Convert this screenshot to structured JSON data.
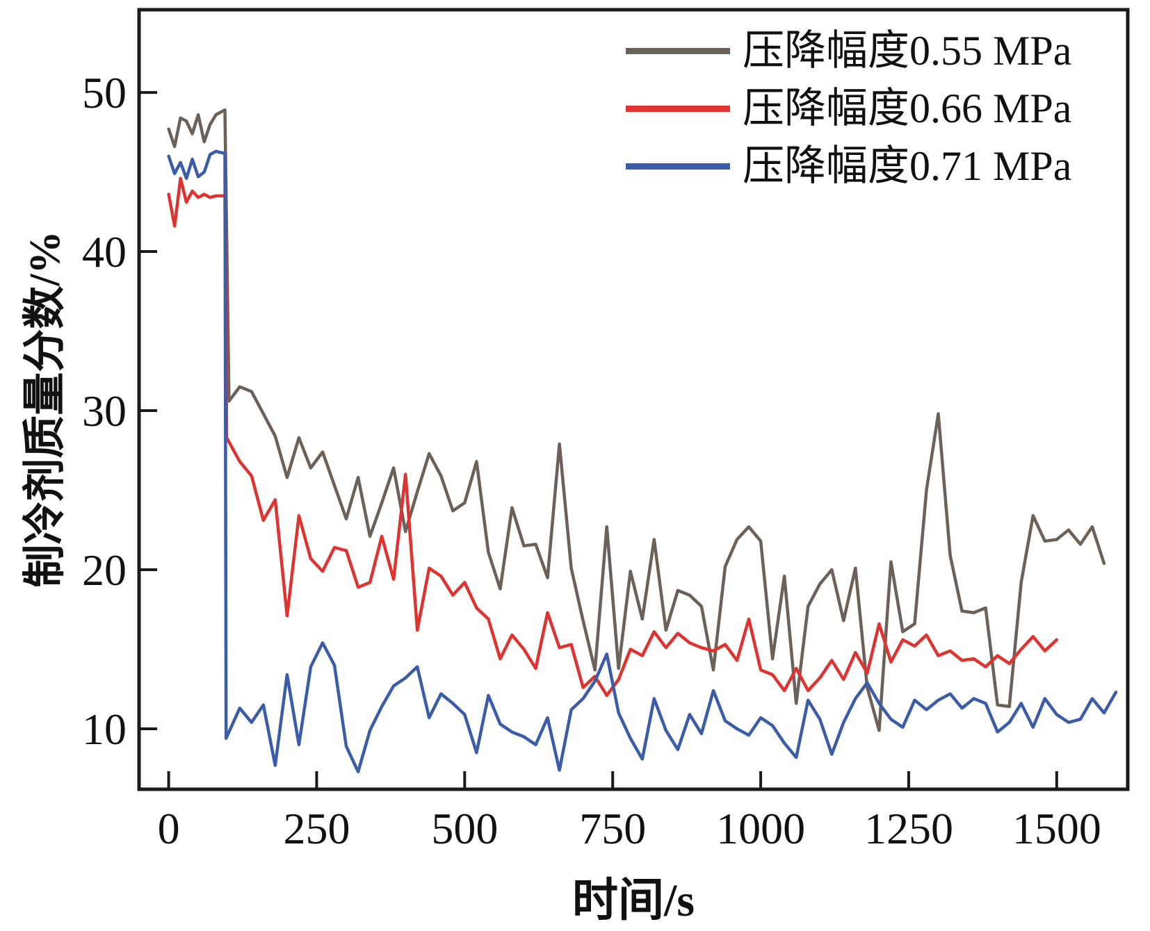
{
  "chart_data": {
    "type": "line",
    "title": "",
    "xlabel": "时间/s",
    "ylabel": "制冷剂质量分数/%",
    "xlim": [
      -50,
      1620
    ],
    "ylim": [
      6.2,
      55.2
    ],
    "xticks": [
      0,
      250,
      500,
      750,
      1000,
      1250,
      1500
    ],
    "yticks": [
      10,
      20,
      30,
      40,
      50
    ],
    "grid": false,
    "legend_position": "top-right",
    "frame_color": "#1a1a1a",
    "series": [
      {
        "name": "压降幅度0.55 MPa",
        "color": "#6b6159",
        "x": [
          0,
          10,
          20,
          30,
          40,
          50,
          60,
          70,
          80,
          90,
          95,
          102,
          120,
          140,
          160,
          180,
          200,
          220,
          240,
          260,
          280,
          300,
          320,
          340,
          360,
          380,
          400,
          420,
          440,
          460,
          480,
          500,
          520,
          540,
          560,
          580,
          600,
          620,
          640,
          660,
          680,
          700,
          720,
          740,
          760,
          780,
          800,
          820,
          840,
          860,
          880,
          900,
          920,
          940,
          960,
          980,
          1000,
          1020,
          1040,
          1060,
          1080,
          1100,
          1120,
          1140,
          1160,
          1180,
          1200,
          1220,
          1240,
          1260,
          1280,
          1300,
          1320,
          1340,
          1360,
          1380,
          1400,
          1420,
          1440,
          1460,
          1480,
          1500,
          1520,
          1540,
          1560,
          1580
        ],
        "y": [
          47.7,
          46.6,
          48.4,
          48.2,
          47.4,
          48.6,
          46.9,
          48.0,
          48.6,
          48.8,
          48.9,
          30.6,
          31.5,
          31.2,
          29.8,
          28.4,
          25.8,
          28.3,
          26.4,
          27.4,
          25.3,
          23.2,
          25.8,
          22.1,
          24.2,
          26.4,
          22.4,
          24.9,
          27.3,
          25.9,
          23.7,
          24.2,
          26.8,
          21.1,
          18.8,
          23.9,
          21.5,
          21.6,
          19.5,
          27.9,
          20.1,
          16.8,
          13.7,
          22.7,
          13.8,
          19.9,
          16.9,
          21.9,
          16.2,
          18.7,
          18.4,
          17.7,
          13.7,
          20.2,
          21.9,
          22.7,
          21.8,
          14.4,
          19.6,
          11.6,
          17.7,
          19.1,
          20.0,
          16.8,
          20.1,
          12.6,
          9.9,
          20.5,
          16.1,
          16.6,
          25.0,
          29.8,
          20.9,
          17.4,
          17.3,
          17.6,
          11.5,
          11.4,
          19.2,
          23.4,
          21.8,
          21.9,
          22.5,
          21.6,
          22.7,
          20.4
        ]
      },
      {
        "name": "压降幅度0.66 MPa",
        "color": "#e0322f",
        "x": [
          0,
          10,
          20,
          30,
          40,
          50,
          60,
          70,
          80,
          90,
          95,
          98,
          120,
          140,
          160,
          180,
          200,
          220,
          240,
          260,
          280,
          300,
          320,
          340,
          360,
          380,
          400,
          420,
          440,
          460,
          480,
          500,
          520,
          540,
          560,
          580,
          600,
          620,
          640,
          660,
          680,
          700,
          720,
          740,
          760,
          780,
          800,
          820,
          840,
          860,
          880,
          900,
          920,
          940,
          960,
          980,
          1000,
          1020,
          1040,
          1060,
          1080,
          1100,
          1120,
          1140,
          1160,
          1180,
          1200,
          1220,
          1240,
          1260,
          1280,
          1300,
          1320,
          1340,
          1360,
          1380,
          1400,
          1420,
          1440,
          1460,
          1480,
          1500
        ],
        "y": [
          43.6,
          41.6,
          44.6,
          43.1,
          43.8,
          43.4,
          43.6,
          43.4,
          43.5,
          43.5,
          43.5,
          28.3,
          26.8,
          25.9,
          23.1,
          24.4,
          17.1,
          23.4,
          20.7,
          19.9,
          21.4,
          21.2,
          18.9,
          19.2,
          22.1,
          19.4,
          26.0,
          16.2,
          20.1,
          19.6,
          18.4,
          19.2,
          17.6,
          16.9,
          14.4,
          15.9,
          15.0,
          13.8,
          17.3,
          15.1,
          15.3,
          12.6,
          13.3,
          12.1,
          13.1,
          15.0,
          14.6,
          16.1,
          15.1,
          16.0,
          15.4,
          15.1,
          14.9,
          15.3,
          14.3,
          16.9,
          13.7,
          13.4,
          12.4,
          13.8,
          12.4,
          13.2,
          14.3,
          13.1,
          14.8,
          13.5,
          16.6,
          14.2,
          15.6,
          15.2,
          15.9,
          14.6,
          14.9,
          14.3,
          14.4,
          13.9,
          14.6,
          14.1,
          15.0,
          15.8,
          14.9,
          15.6
        ]
      },
      {
        "name": "压降幅度0.71 MPa",
        "color": "#3a5ca9",
        "x": [
          0,
          10,
          20,
          30,
          40,
          50,
          60,
          70,
          80,
          90,
          95,
          97,
          120,
          140,
          160,
          180,
          200,
          220,
          240,
          260,
          280,
          300,
          320,
          340,
          360,
          380,
          400,
          420,
          440,
          460,
          480,
          500,
          520,
          540,
          560,
          580,
          600,
          620,
          640,
          660,
          680,
          700,
          720,
          740,
          760,
          780,
          800,
          820,
          840,
          860,
          880,
          900,
          920,
          940,
          960,
          980,
          1000,
          1020,
          1040,
          1060,
          1080,
          1100,
          1120,
          1140,
          1160,
          1180,
          1200,
          1220,
          1240,
          1260,
          1280,
          1300,
          1320,
          1340,
          1360,
          1380,
          1400,
          1420,
          1440,
          1460,
          1480,
          1500,
          1520,
          1540,
          1560,
          1580,
          1600
        ],
        "y": [
          46.0,
          44.9,
          45.6,
          44.6,
          45.8,
          44.7,
          45.0,
          46.1,
          46.3,
          46.2,
          46.2,
          9.4,
          11.3,
          10.4,
          11.5,
          7.7,
          13.4,
          9.0,
          13.9,
          15.4,
          14.0,
          8.9,
          7.3,
          9.9,
          11.4,
          12.7,
          13.2,
          13.9,
          10.7,
          12.2,
          11.6,
          10.9,
          8.5,
          12.1,
          10.3,
          9.8,
          9.5,
          9.0,
          10.7,
          7.4,
          11.2,
          11.9,
          13.0,
          14.7,
          11.0,
          9.4,
          8.1,
          11.9,
          9.9,
          8.7,
          10.9,
          9.7,
          12.4,
          10.5,
          10.0,
          9.6,
          10.7,
          10.2,
          9.1,
          8.2,
          11.8,
          10.6,
          8.4,
          10.4,
          11.9,
          12.9,
          11.6,
          10.6,
          10.1,
          11.8,
          11.2,
          11.8,
          12.2,
          11.3,
          11.9,
          11.6,
          9.8,
          10.4,
          11.6,
          10.1,
          11.9,
          10.9,
          10.4,
          10.6,
          11.9,
          11.0,
          12.3
        ]
      }
    ]
  }
}
